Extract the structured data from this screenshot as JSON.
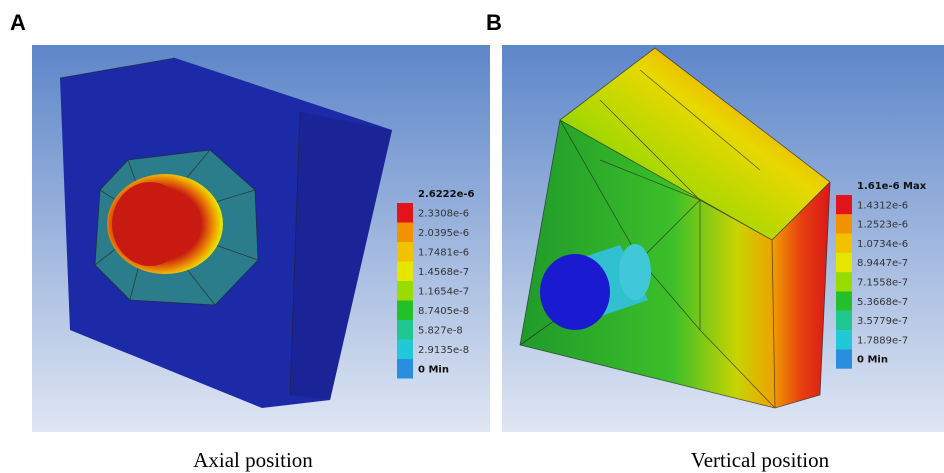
{
  "panels": [
    {
      "label": "A",
      "caption": "Axial position",
      "legend": [
        "2.6222e-6",
        "2.3308e-6",
        "2.0395e-6",
        "1.7481e-6",
        "1.4568e-7",
        "1.1654e-7",
        "8.7405e-8",
        "5.827e-8",
        "2.9135e-8",
        "0 Min"
      ]
    },
    {
      "label": "B",
      "caption": "Vertical position",
      "legend": [
        "1.61e-6 Max",
        "1.4312e-6",
        "1.2523e-6",
        "1.0734e-6",
        "8.9447e-7",
        "7.1558e-7",
        "5.3668e-7",
        "3.5779e-7",
        "1.7889e-7",
        "0 Min"
      ]
    }
  ]
}
